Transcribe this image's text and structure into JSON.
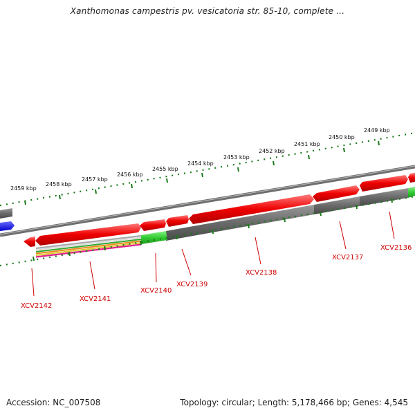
{
  "title": "Xanthomonas campestris pv. vesicatoria str. 85-10, complete ...",
  "accession": "Accession: NC_007508",
  "summary": "Topology: circular; Length: 5,178,466 bp; Genes: 4,545",
  "scale_labels": [
    "2459 kbp",
    "2458 kbp",
    "2457 kbp",
    "2456 kbp",
    "2455 kbp",
    "2454 kbp",
    "2453 kbp",
    "2452 kbp",
    "2451 kbp",
    "2450 kbp",
    "2449 kbp"
  ],
  "gene_labels": [
    "XCV2142",
    "XCV2141",
    "XCV2140",
    "XCV2139",
    "XCV2138",
    "XCV2137",
    "XCV2136"
  ],
  "colors": {
    "backbone": "#808080",
    "cds_forward": "#ff0000",
    "cds_reverse": "#666666",
    "highlight": "#33cc33",
    "other_feature": "#0000ff",
    "tick": "#1a7a1a",
    "label": "#d00000"
  }
}
